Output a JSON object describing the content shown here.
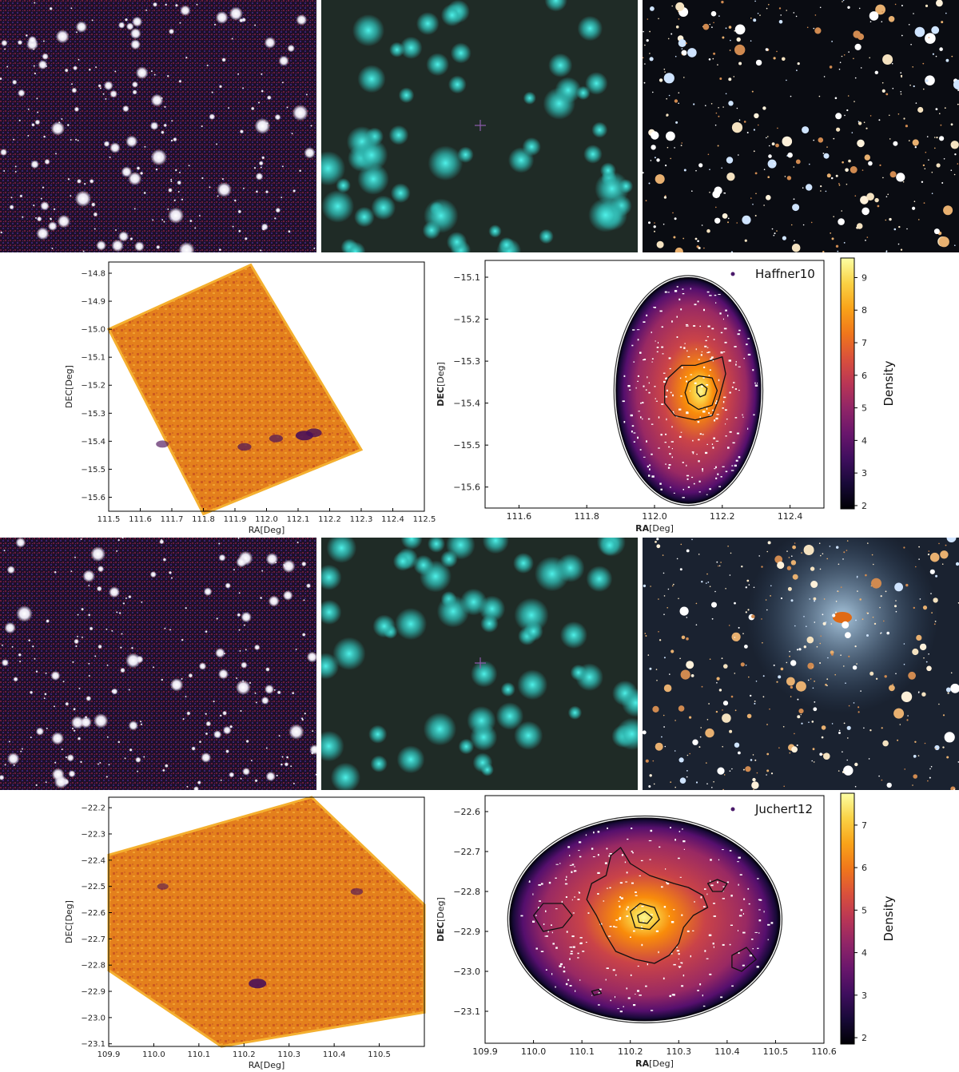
{
  "figure": {
    "rows": [
      {
        "cluster_name": "Haffner10",
        "survey_images": [
          {
            "style": "red-blue-white",
            "seed": 11,
            "stars": 230
          },
          {
            "style": "cyan-blurred",
            "seed": 21,
            "stars": 55
          },
          {
            "style": "deep-color",
            "seed": 31,
            "stars": 420
          }
        ]
      },
      {
        "cluster_name": "Juchert12",
        "survey_images": [
          {
            "style": "red-blue-white",
            "seed": 41,
            "stars": 230
          },
          {
            "style": "cyan-blurred",
            "seed": 51,
            "stars": 55
          },
          {
            "style": "deep-color",
            "seed": 61,
            "stars": 420
          }
        ]
      }
    ]
  },
  "chart_data": [
    {
      "type": "heatmap",
      "panel": "raw-density-map",
      "cluster": "Haffner10",
      "xlabel": "RA[Deg]",
      "ylabel": "DEC[Deg]",
      "xlim": [
        111.5,
        112.5
      ],
      "ylim": [
        -15.65,
        -14.76
      ],
      "xticks": [
        111.5,
        111.6,
        111.7,
        111.8,
        111.9,
        112.0,
        112.1,
        112.2,
        112.3,
        112.4,
        112.5
      ],
      "xtick_labels": [
        "111.5",
        "111.6",
        "111.7",
        "111.8",
        "111.9",
        "112.0",
        "112.1",
        "112.2",
        "112.3",
        "112.4",
        "112.5"
      ],
      "yticks": [
        -14.8,
        -14.9,
        -15.0,
        -15.1,
        -15.2,
        -15.3,
        -15.4,
        -15.5,
        -15.6
      ],
      "ytick_labels": [
        "−14.8",
        "−14.9",
        "−15.0",
        "−15.1",
        "−15.2",
        "−15.3",
        "−15.4",
        "−15.5",
        "−15.6"
      ],
      "footprint": [
        [
          111.95,
          -14.77
        ],
        [
          112.3,
          -15.43
        ],
        [
          111.8,
          -15.66
        ],
        [
          111.5,
          -15.0
        ]
      ],
      "dark_spots": [
        {
          "ra": 112.12,
          "dec": -15.38,
          "strength": 1.0
        },
        {
          "ra": 112.15,
          "dec": -15.37,
          "strength": 0.8
        },
        {
          "ra": 112.03,
          "dec": -15.39,
          "strength": 0.6
        },
        {
          "ra": 111.93,
          "dec": -15.42,
          "strength": 0.6
        },
        {
          "ra": 111.67,
          "dec": -15.41,
          "strength": 0.5
        }
      ],
      "grid": false
    },
    {
      "type": "heatmap",
      "panel": "kde-density-map",
      "cluster": "Haffner10",
      "xlabel_bold": "RA",
      "xlabel_rest": "[Deg]",
      "ylabel_bold": "DEC",
      "ylabel_rest": "[Deg]",
      "xlim": [
        111.5,
        112.5
      ],
      "ylim": [
        -15.65,
        -15.06
      ],
      "xticks": [
        111.6,
        111.8,
        112.0,
        112.2,
        112.4
      ],
      "xtick_labels": [
        "111.6",
        "111.8",
        "112.0",
        "112.2",
        "112.4"
      ],
      "yticks": [
        -15.1,
        -15.2,
        -15.3,
        -15.4,
        -15.5,
        -15.6
      ],
      "ytick_labels": [
        "−15.1",
        "−15.2",
        "−15.3",
        "−15.4",
        "−15.5",
        "−15.6"
      ],
      "legend": "Haffner10",
      "legend_position": "top-right",
      "center": {
        "ra": 112.138,
        "dec": -15.372
      },
      "region": {
        "ra": 112.1,
        "dec": -15.37,
        "r_ra": 0.215,
        "r_dec": 0.27
      },
      "colorbar_label": "Density",
      "colorbar_range": [
        1.9,
        9.6
      ],
      "colorbar_ticks": [
        2,
        3,
        4,
        5,
        6,
        7,
        8,
        9
      ],
      "colorbar_tick_labels": [
        "2",
        "3",
        "4",
        "5",
        "6",
        "7",
        "8",
        "9"
      ],
      "contours": [
        [
          [
            112.04,
            -15.34
          ],
          [
            112.08,
            -15.31
          ],
          [
            112.12,
            -15.31
          ],
          [
            112.16,
            -15.3
          ],
          [
            112.2,
            -15.29
          ],
          [
            112.21,
            -15.33
          ],
          [
            112.19,
            -15.39
          ],
          [
            112.17,
            -15.43
          ],
          [
            112.12,
            -15.44
          ],
          [
            112.06,
            -15.43
          ],
          [
            112.03,
            -15.4
          ],
          [
            112.03,
            -15.36
          ]
        ],
        [
          [
            112.1,
            -15.35
          ],
          [
            112.13,
            -15.335
          ],
          [
            112.17,
            -15.34
          ],
          [
            112.185,
            -15.37
          ],
          [
            112.17,
            -15.405
          ],
          [
            112.13,
            -15.415
          ],
          [
            112.1,
            -15.4
          ],
          [
            112.09,
            -15.375
          ]
        ],
        [
          [
            112.125,
            -15.36
          ],
          [
            112.14,
            -15.355
          ],
          [
            112.155,
            -15.365
          ],
          [
            112.15,
            -15.38
          ],
          [
            112.135,
            -15.385
          ],
          [
            112.125,
            -15.375
          ]
        ]
      ]
    },
    {
      "type": "heatmap",
      "panel": "raw-density-map",
      "cluster": "Juchert12",
      "xlabel": "RA[Deg]",
      "ylabel": "DEC[Deg]",
      "xlim": [
        109.9,
        110.6
      ],
      "ylim": [
        -23.11,
        -22.16
      ],
      "xticks": [
        109.9,
        110.0,
        110.1,
        110.2,
        110.3,
        110.4,
        110.5
      ],
      "xtick_labels": [
        "109.9",
        "110.0",
        "110.1",
        "110.2",
        "110.3",
        "110.4",
        "110.5"
      ],
      "yticks": [
        -22.2,
        -22.3,
        -22.4,
        -22.5,
        -22.6,
        -22.7,
        -22.8,
        -22.9,
        -23.0,
        -23.1
      ],
      "ytick_labels": [
        "−22.2",
        "−22.3",
        "−22.4",
        "−22.5",
        "−22.6",
        "−22.7",
        "−22.8",
        "−22.9",
        "−23.0",
        "−23.1"
      ],
      "footprint": [
        [
          110.35,
          -22.16
        ],
        [
          110.6,
          -22.57
        ],
        [
          110.6,
          -22.98
        ],
        [
          110.15,
          -23.11
        ],
        [
          109.9,
          -22.82
        ],
        [
          109.9,
          -22.38
        ]
      ],
      "dark_spots": [
        {
          "ra": 110.23,
          "dec": -22.87,
          "strength": 1.0
        },
        {
          "ra": 110.45,
          "dec": -22.52,
          "strength": 0.45
        },
        {
          "ra": 110.02,
          "dec": -22.5,
          "strength": 0.35
        }
      ],
      "grid": false
    },
    {
      "type": "heatmap",
      "panel": "kde-density-map",
      "cluster": "Juchert12",
      "xlabel_bold": "RA",
      "xlabel_rest": "[Deg]",
      "ylabel_bold": "DEC",
      "ylabel_rest": "[Deg]",
      "xlim": [
        109.9,
        110.6
      ],
      "ylim": [
        -23.18,
        -22.56
      ],
      "xticks": [
        109.9,
        110.0,
        110.1,
        110.2,
        110.3,
        110.4,
        110.5,
        110.6
      ],
      "xtick_labels": [
        "109.9",
        "110.0",
        "110.1",
        "110.2",
        "110.3",
        "110.4",
        "110.5",
        "110.6"
      ],
      "yticks": [
        -22.6,
        -22.7,
        -22.8,
        -22.9,
        -23.0,
        -23.1
      ],
      "ytick_labels": [
        "−22.6",
        "−22.7",
        "−22.8",
        "−22.9",
        "−23.0",
        "−23.1"
      ],
      "legend": "Juchert12",
      "legend_position": "top-right",
      "center": {
        "ra": 110.228,
        "dec": -22.865
      },
      "region": {
        "ra": 110.23,
        "dec": -22.87,
        "r_ra": 0.28,
        "r_dec": 0.255
      },
      "colorbar_label": "Density",
      "colorbar_range": [
        1.85,
        7.75
      ],
      "colorbar_ticks": [
        2,
        3,
        4,
        5,
        6,
        7
      ],
      "colorbar_tick_labels": [
        "2",
        "3",
        "4",
        "5",
        "6",
        "7"
      ],
      "contours": [
        [
          [
            110.0,
            -22.86
          ],
          [
            110.02,
            -22.83
          ],
          [
            110.06,
            -22.83
          ],
          [
            110.08,
            -22.86
          ],
          [
            110.06,
            -22.89
          ],
          [
            110.02,
            -22.9
          ]
        ],
        [
          [
            110.12,
            -22.78
          ],
          [
            110.15,
            -22.76
          ],
          [
            110.16,
            -22.71
          ],
          [
            110.18,
            -22.69
          ],
          [
            110.2,
            -22.73
          ],
          [
            110.24,
            -22.76
          ],
          [
            110.29,
            -22.78
          ],
          [
            110.32,
            -22.79
          ],
          [
            110.35,
            -22.81
          ],
          [
            110.36,
            -22.84
          ],
          [
            110.33,
            -22.86
          ],
          [
            110.31,
            -22.89
          ],
          [
            110.3,
            -22.93
          ],
          [
            110.28,
            -22.96
          ],
          [
            110.25,
            -22.98
          ],
          [
            110.21,
            -22.97
          ],
          [
            110.17,
            -22.95
          ],
          [
            110.15,
            -22.91
          ],
          [
            110.13,
            -22.86
          ],
          [
            110.11,
            -22.82
          ]
        ],
        [
          [
            110.2,
            -22.85
          ],
          [
            110.22,
            -22.83
          ],
          [
            110.25,
            -22.84
          ],
          [
            110.26,
            -22.87
          ],
          [
            110.24,
            -22.895
          ],
          [
            110.21,
            -22.89
          ]
        ],
        [
          [
            110.215,
            -22.86
          ],
          [
            110.23,
            -22.85
          ],
          [
            110.245,
            -22.865
          ],
          [
            110.235,
            -22.88
          ],
          [
            110.218,
            -22.877
          ]
        ],
        [
          [
            110.36,
            -22.78
          ],
          [
            110.38,
            -22.77
          ],
          [
            110.4,
            -22.78
          ],
          [
            110.39,
            -22.8
          ],
          [
            110.37,
            -22.8
          ]
        ],
        [
          [
            110.41,
            -22.96
          ],
          [
            110.44,
            -22.94
          ],
          [
            110.46,
            -22.97
          ],
          [
            110.43,
            -23.0
          ],
          [
            110.41,
            -22.99
          ]
        ],
        [
          [
            110.12,
            -23.05
          ],
          [
            110.135,
            -23.045
          ],
          [
            110.14,
            -23.055
          ],
          [
            110.125,
            -23.06
          ]
        ]
      ]
    }
  ]
}
